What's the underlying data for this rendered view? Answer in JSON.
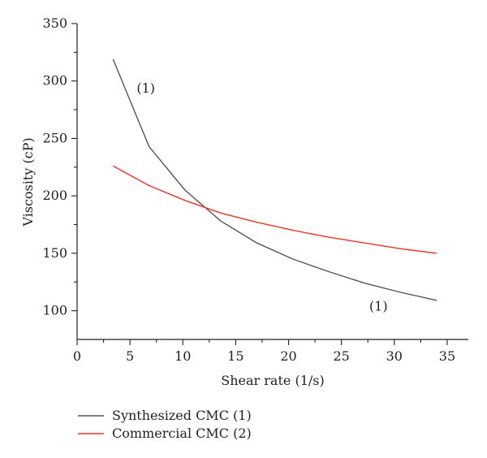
{
  "chart_data": {
    "type": "line",
    "xlabel": "Shear rate (1/s)",
    "ylabel": "Viscosity (cP)",
    "xlim": [
      0,
      37
    ],
    "ylim": [
      75,
      350
    ],
    "xticks": [
      0,
      5,
      10,
      15,
      20,
      25,
      30,
      35
    ],
    "yticks": [
      100,
      150,
      200,
      250,
      300,
      350
    ],
    "grid": false,
    "legend_position": "bottom",
    "series": [
      {
        "name": "Synthesized CMC (1)",
        "color": "#555555",
        "x": [
          3.4,
          6.8,
          10.2,
          13.6,
          17.0,
          20.4,
          23.8,
          27.2,
          30.6,
          34.0
        ],
        "y": [
          319,
          243,
          205,
          178,
          159,
          145,
          134,
          124,
          116,
          109
        ]
      },
      {
        "name": "Commercial CMC (2)",
        "color": "#ee3322",
        "x": [
          3.4,
          6.8,
          10.2,
          13.6,
          17.0,
          20.4,
          23.8,
          27.2,
          30.6,
          34.0
        ],
        "y": [
          226,
          209,
          196,
          185,
          177,
          170,
          164,
          159,
          154,
          150
        ]
      }
    ],
    "annotations": [
      {
        "text": "(1)",
        "x": 6.5,
        "y": 290
      },
      {
        "text": "(1)",
        "x": 28.5,
        "y": 100
      }
    ]
  }
}
